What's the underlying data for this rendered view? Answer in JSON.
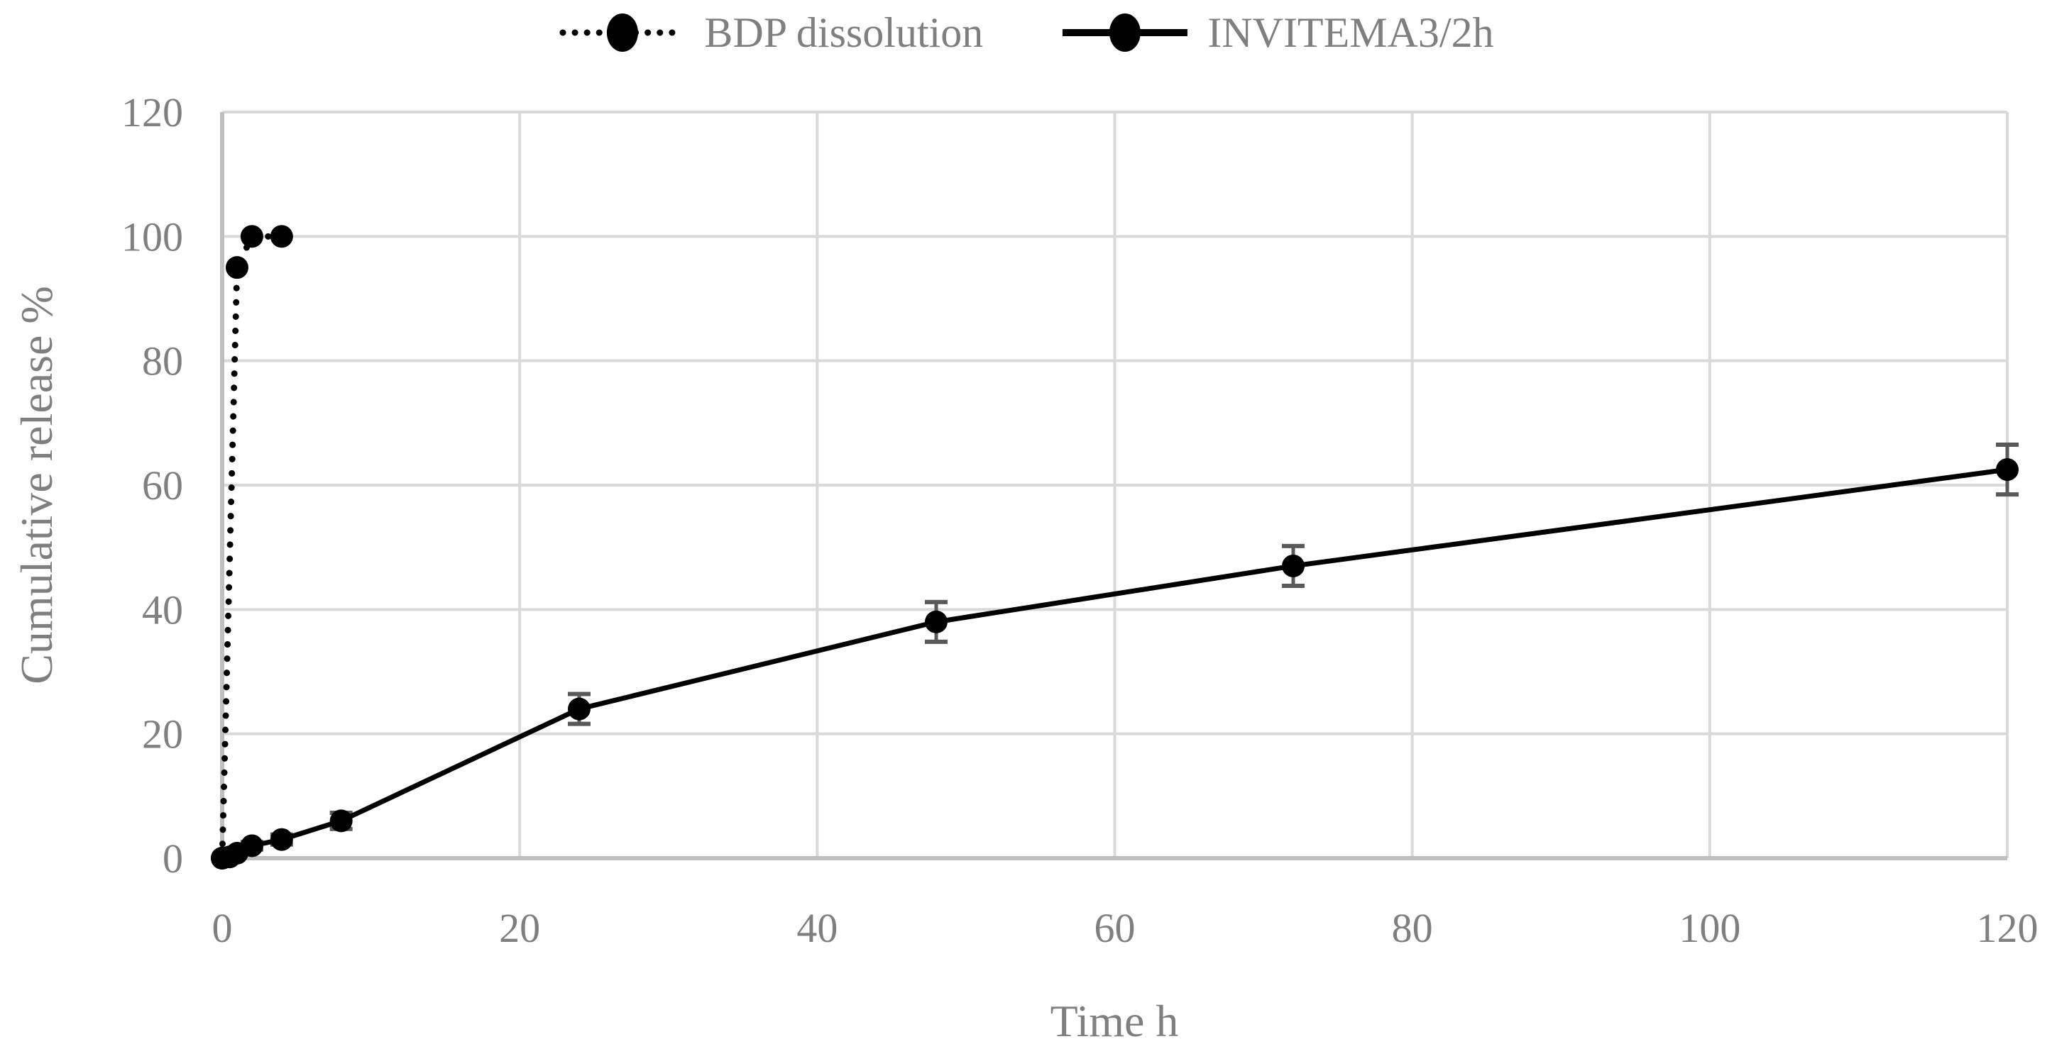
{
  "chart_data": {
    "type": "line",
    "title": "",
    "xlabel": "Time h",
    "ylabel": "Cumulative release %",
    "xlim": [
      0,
      120
    ],
    "ylim": [
      0,
      120
    ],
    "x_ticks": [
      0,
      20,
      40,
      60,
      80,
      100,
      120
    ],
    "y_ticks": [
      0,
      20,
      40,
      60,
      80,
      100,
      120
    ],
    "grid": true,
    "legend_position": "top-center",
    "series": [
      {
        "name": "BDP dissolution",
        "line_style": "dotted",
        "marker": "circle",
        "color": "#000000",
        "x": [
          0,
          1,
          2,
          4
        ],
        "y": [
          0,
          95,
          100,
          100
        ],
        "y_err": [
          0,
          0,
          0,
          0
        ]
      },
      {
        "name": "INVITEMA3/2h",
        "line_style": "solid",
        "marker": "circle",
        "color": "#000000",
        "x": [
          0,
          0.5,
          1,
          2,
          4,
          8,
          24,
          48,
          72,
          120
        ],
        "y": [
          0,
          0.2,
          0.8,
          2,
          3,
          6,
          24,
          38,
          47,
          62.5
        ],
        "y_err": [
          0,
          0,
          0,
          0.6,
          0.8,
          1.3,
          2.4,
          3.2,
          3.2,
          4
        ]
      }
    ]
  },
  "colors": {
    "background": "#ffffff",
    "grid_line": "#d9d9d9",
    "axis_line": "#bfbfbf",
    "tick_text": "#7f7f7f",
    "legend_text": "#7f7f7f",
    "series": "#000000",
    "error_bar": "#595959"
  }
}
